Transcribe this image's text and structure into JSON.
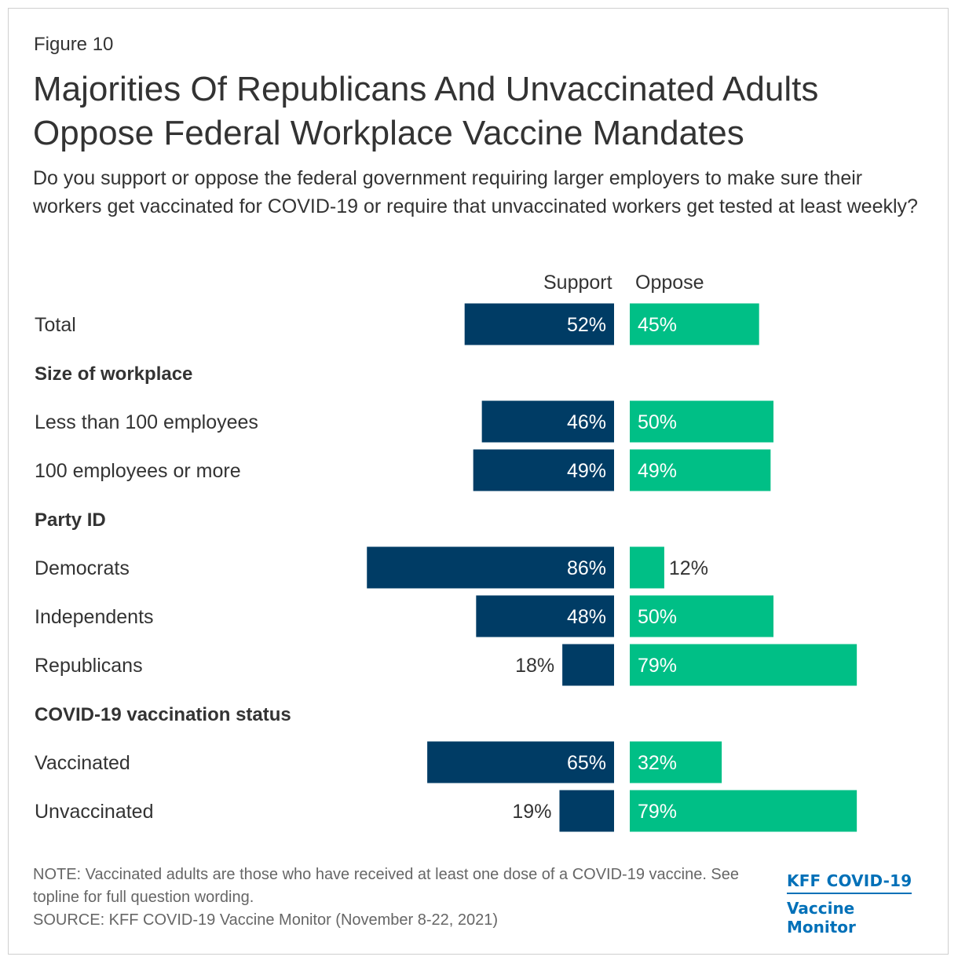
{
  "figure_label": "Figure 10",
  "title": "Majorities Of Republicans And Unvaccinated Adults Oppose Federal Workplace Vaccine Mandates",
  "subtitle": "Do you support or oppose the federal government requiring larger employers to make sure their workers get vaccinated for COVID-19 or require that unvaccinated workers get tested at least weekly?",
  "colors": {
    "support": "#003c65",
    "oppose": "#00bf86",
    "text": "#333333"
  },
  "chart_data": {
    "type": "bar",
    "orientation": "horizontal-diverging",
    "series": [
      {
        "name": "Support",
        "color": "#003c65"
      },
      {
        "name": "Oppose",
        "color": "#00bf86"
      }
    ],
    "rows": [
      {
        "kind": "item",
        "label": "Total",
        "support": 52,
        "oppose": 45
      },
      {
        "kind": "group",
        "label": "Size of workplace"
      },
      {
        "kind": "item",
        "label": "Less than 100 employees",
        "support": 46,
        "oppose": 50
      },
      {
        "kind": "item",
        "label": "100 employees or more",
        "support": 49,
        "oppose": 49
      },
      {
        "kind": "group",
        "label": "Party ID"
      },
      {
        "kind": "item",
        "label": "Democrats",
        "support": 86,
        "oppose": 12
      },
      {
        "kind": "item",
        "label": "Independents",
        "support": 48,
        "oppose": 50
      },
      {
        "kind": "item",
        "label": "Republicans",
        "support": 18,
        "oppose": 79
      },
      {
        "kind": "group",
        "label": "COVID-19 vaccination status"
      },
      {
        "kind": "item",
        "label": "Vaccinated",
        "support": 65,
        "oppose": 32
      },
      {
        "kind": "item",
        "label": "Unvaccinated",
        "support": 19,
        "oppose": 79
      }
    ],
    "value_suffix": "%"
  },
  "note": "NOTE: Vaccinated adults are those who have received at least one dose of a COVID-19 vaccine. See topline for full question wording.",
  "source": "SOURCE: KFF COVID-19 Vaccine Monitor (November 8-22, 2021)",
  "logo": {
    "line1": "KFF COVID-19",
    "line2": "Vaccine Monitor"
  }
}
